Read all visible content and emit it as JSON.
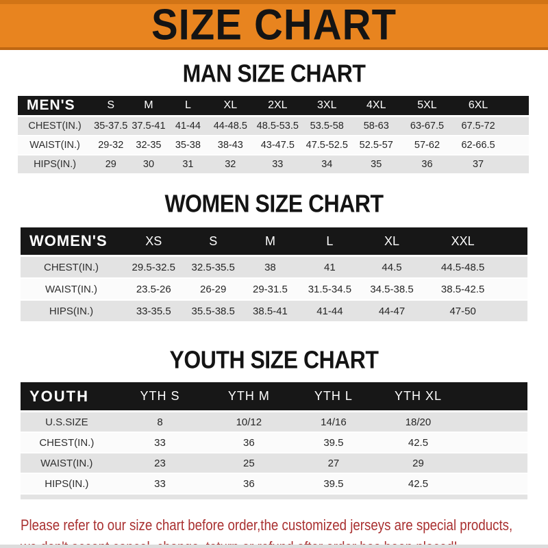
{
  "banner": {
    "title": "SIZE CHART"
  },
  "colors": {
    "banner_orange": "#e8841f",
    "header_bar_black": "#171717",
    "row_gray": "#e3e3e3",
    "row_white": "#fbfbfb",
    "footer_red": "#a93030"
  },
  "sections": [
    {
      "title": "MAN SIZE CHART",
      "header_label": "MEN'S",
      "columns": [
        "S",
        "M",
        "L",
        "XL",
        "2XL",
        "3XL",
        "4XL",
        "5XL",
        "6XL"
      ],
      "rows": [
        {
          "label": "CHEST(IN.)",
          "values": [
            "35-37.5",
            "37.5-41",
            "41-44",
            "44-48.5",
            "48.5-53.5",
            "53.5-58",
            "58-63",
            "63-67.5",
            "67.5-72"
          ]
        },
        {
          "label": "WAIST(IN.)",
          "values": [
            "29-32",
            "32-35",
            "35-38",
            "38-43",
            "43-47.5",
            "47.5-52.5",
            "52.5-57",
            "57-62",
            "62-66.5"
          ]
        },
        {
          "label": "HIPS(IN.)",
          "values": [
            "29",
            "30",
            "31",
            "32",
            "33",
            "34",
            "35",
            "36",
            "37"
          ]
        }
      ]
    },
    {
      "title": "WOMEN SIZE CHART",
      "header_label": "WOMEN'S",
      "columns": [
        "XS",
        "S",
        "M",
        "L",
        "XL",
        "XXL"
      ],
      "rows": [
        {
          "label": "CHEST(IN.)",
          "values": [
            "29.5-32.5",
            "32.5-35.5",
            "38",
            "41",
            "44.5",
            "44.5-48.5"
          ]
        },
        {
          "label": "WAIST(IN.)",
          "values": [
            "23.5-26",
            "26-29",
            "29-31.5",
            "31.5-34.5",
            "34.5-38.5",
            "38.5-42.5"
          ]
        },
        {
          "label": "HIPS(IN.)",
          "values": [
            "33-35.5",
            "35.5-38.5",
            "38.5-41",
            "41-44",
            "44-47",
            "47-50"
          ]
        }
      ]
    },
    {
      "title": "YOUTH SIZE CHART",
      "header_label": "YOUTH",
      "columns": [
        "YTH S",
        "YTH M",
        "YTH L",
        "YTH XL"
      ],
      "rows": [
        {
          "label": "U.S.SIZE",
          "values": [
            "8",
            "10/12",
            "14/16",
            "18/20"
          ]
        },
        {
          "label": "CHEST(IN.)",
          "values": [
            "33",
            "36",
            "39.5",
            "42.5"
          ]
        },
        {
          "label": "WAIST(IN.)",
          "values": [
            "23",
            "25",
            "27",
            "29"
          ]
        },
        {
          "label": "HIPS(IN.)",
          "values": [
            "33",
            "36",
            "39.5",
            "42.5"
          ]
        }
      ]
    }
  ],
  "footer": {
    "line1": "Please refer to our size chart before order,the customized jerseys are special products,",
    "line2": "we don't accept cancel, change, teturn or refund after order has been placed!"
  }
}
